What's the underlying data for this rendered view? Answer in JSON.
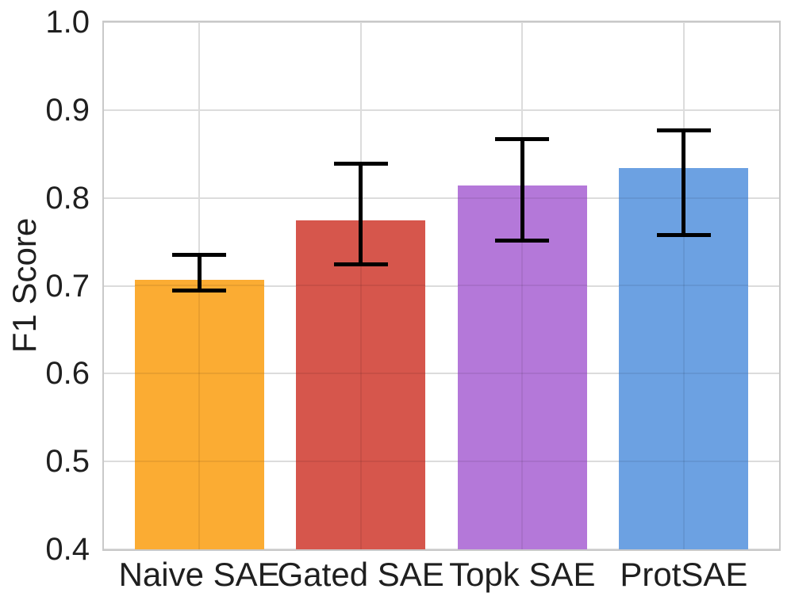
{
  "figure": {
    "background_color": "#FFFFFF"
  },
  "chart_data": {
    "type": "bar",
    "title": "",
    "xlabel": "",
    "ylabel": "F1 Score",
    "categories": [
      "Naive SAE",
      "Gated SAE",
      "Topk SAE",
      "ProtSAE"
    ],
    "values": [
      0.707,
      0.774,
      0.814,
      0.834
    ],
    "error_low": [
      0.695,
      0.724,
      0.751,
      0.758
    ],
    "error_high": [
      0.735,
      0.839,
      0.867,
      0.877
    ],
    "bar_colors": [
      "#FBAC33",
      "#D6564C",
      "#B478D9",
      "#6CA1E2"
    ],
    "error_bar_color": "#000000",
    "ylim": [
      0.4,
      1.0
    ],
    "yticks": [
      1.0,
      0.9,
      0.8,
      0.7,
      0.6,
      0.5,
      0.4
    ],
    "ytick_labels": [
      "1.0",
      "0.9",
      "0.8",
      "0.7",
      "0.6",
      "0.5",
      "0.4"
    ],
    "grid": true,
    "gridline_color": "#DCDCDC",
    "spine_color": "#C9C9C9",
    "text_color": "#1F1F1F",
    "legend_position": "none"
  }
}
